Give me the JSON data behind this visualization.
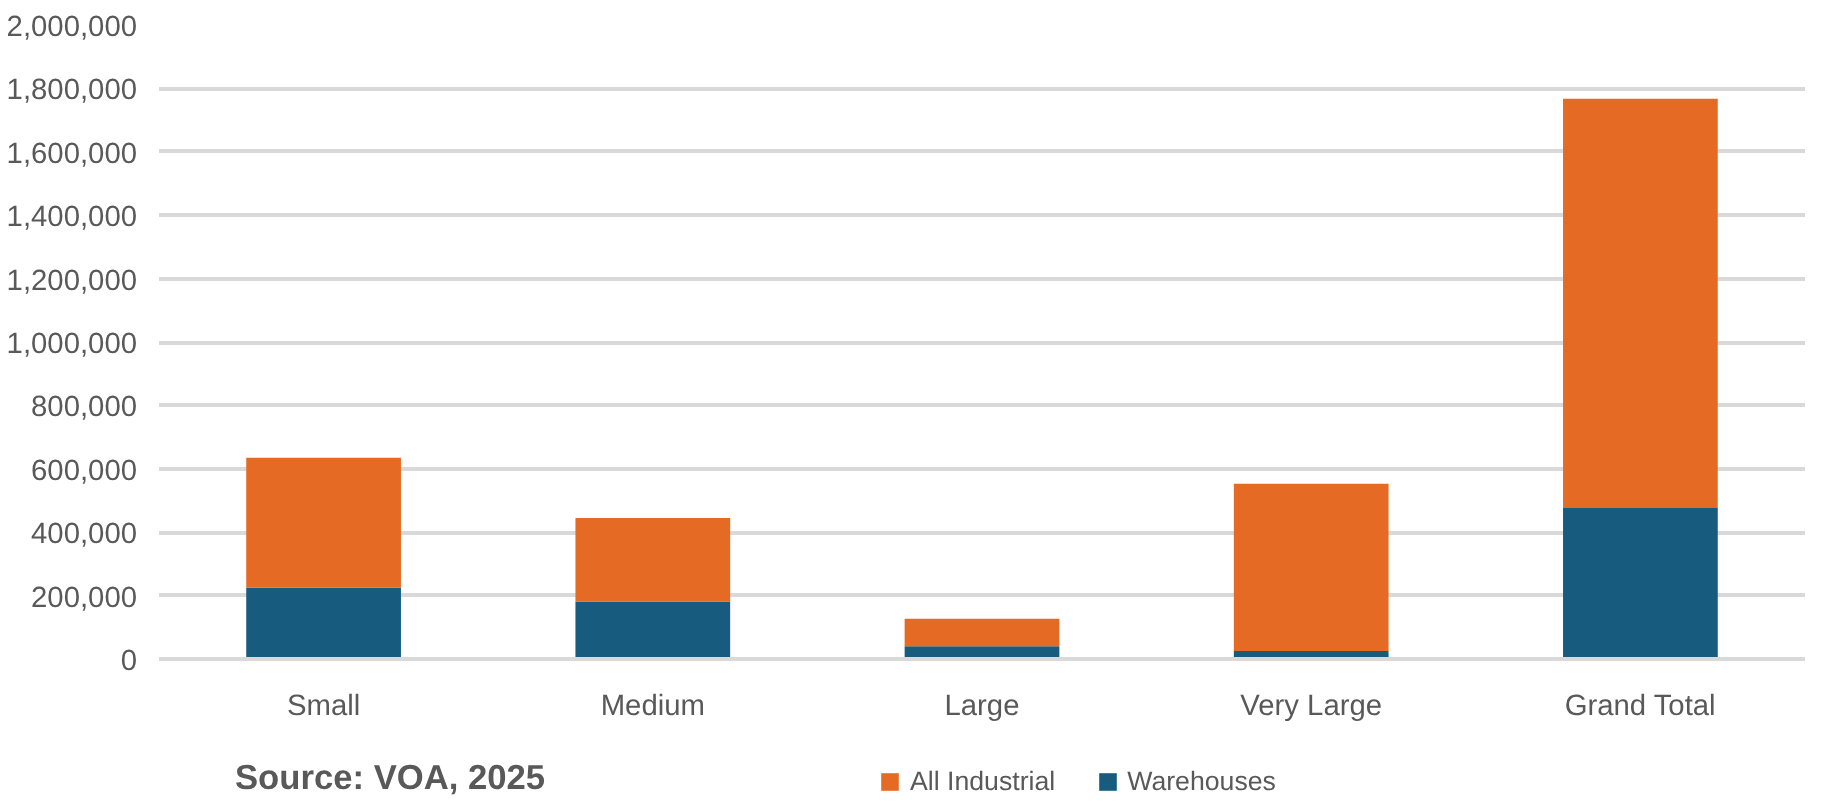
{
  "chart_data": {
    "type": "bar",
    "stacked": true,
    "categories": [
      "Small",
      "Medium",
      "Large",
      "Very Large",
      "Grand Total"
    ],
    "series": [
      {
        "name": "Warehouses",
        "color": "#175c7f",
        "values": [
          225000,
          181000,
          40000,
          25000,
          476000
        ]
      },
      {
        "name": "All Industrial",
        "color": "#e56b25",
        "values": [
          410000,
          264000,
          87000,
          528000,
          1291000
        ]
      }
    ],
    "ylim": [
      0,
      2000000
    ],
    "yticks": [
      {
        "value": 0,
        "label": "0"
      },
      {
        "value": 200000,
        "label": "200,000"
      },
      {
        "value": 400000,
        "label": "400,000"
      },
      {
        "value": 600000,
        "label": "600,000"
      },
      {
        "value": 800000,
        "label": "800,000"
      },
      {
        "value": 1000000,
        "label": "1,000,000"
      },
      {
        "value": 1200000,
        "label": "1,200,000"
      },
      {
        "value": 1400000,
        "label": "1,400,000"
      },
      {
        "value": 1600000,
        "label": "1,600,000"
      },
      {
        "value": 1800000,
        "label": "1,800,000"
      },
      {
        "value": 2000000,
        "label": "2,000,000"
      }
    ],
    "grid": "y",
    "legend": "bottom",
    "annotations": [
      "Source: VOA, 2025"
    ]
  }
}
